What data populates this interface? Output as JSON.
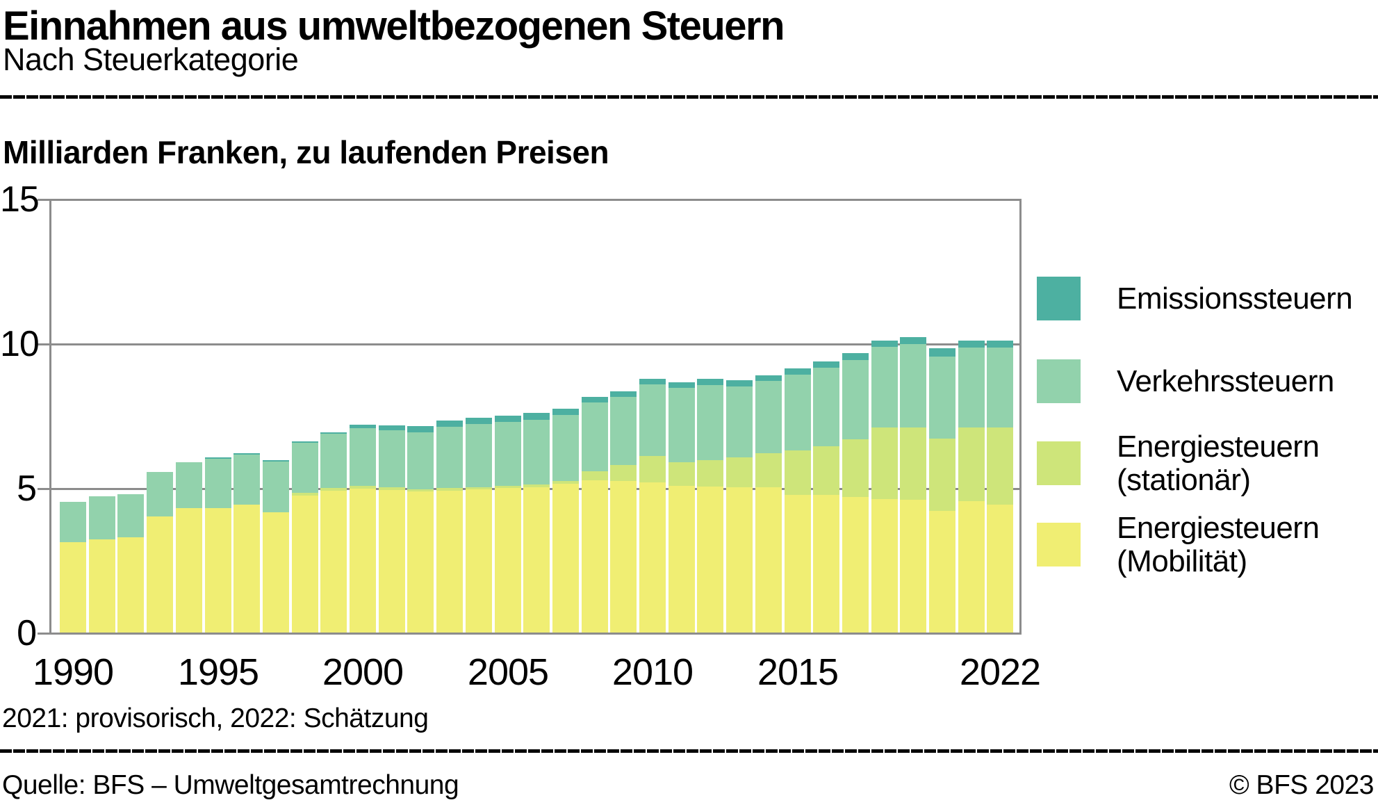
{
  "header": {
    "title": "Einnahmen aus umweltbezogenen Steuern",
    "subtitle": "Nach Steuerkategorie"
  },
  "units_label": "Milliarden Franken, zu laufenden Preisen",
  "footnote": "2021: provisorisch, 2022: Schätzung",
  "source": "Quelle: BFS – Umweltgesamtrechnung",
  "copyright": "© BFS 2023",
  "colors": {
    "axis_gray": "#8C8C8C",
    "emissions": "#4DB0A1",
    "traffic": "#92D2AC",
    "energy_stationary": "#CEE57A",
    "energy_mobility": "#F0EE73",
    "text": "#000000",
    "background": "#FFFFFF"
  },
  "legend": {
    "items": [
      {
        "key": "emissions",
        "lines": [
          "Emissionssteuern"
        ]
      },
      {
        "key": "traffic",
        "lines": [
          "Verkehrssteuern"
        ]
      },
      {
        "key": "energy_stationary",
        "lines": [
          "Energiesteuern",
          "(stationär)"
        ]
      },
      {
        "key": "energy_mobility",
        "lines": [
          "Energiesteuern",
          "(Mobilität)"
        ]
      }
    ]
  },
  "chart_data": {
    "type": "bar",
    "stacked": true,
    "title": "Einnahmen aus umweltbezogenen Steuern",
    "ylabel": "Milliarden Franken, zu laufenden Preisen",
    "ylim": [
      0,
      15
    ],
    "y_ticks": [
      0,
      5,
      10,
      15
    ],
    "x_tick_years": [
      "1990",
      "1995",
      "2000",
      "2005",
      "2010",
      "2015",
      "2022"
    ],
    "grid": true,
    "legend_position": "right",
    "categories": [
      "1990",
      "1991",
      "1992",
      "1993",
      "1994",
      "1995",
      "1996",
      "1997",
      "1998",
      "1999",
      "2000",
      "2001",
      "2002",
      "2003",
      "2004",
      "2005",
      "2006",
      "2007",
      "2008",
      "2009",
      "2010",
      "2011",
      "2012",
      "2013",
      "2014",
      "2015",
      "2016",
      "2017",
      "2018",
      "2019",
      "2020",
      "2021",
      "2022"
    ],
    "series": [
      {
        "name": "Energiesteuern (Mobilität)",
        "color_key": "energy_mobility",
        "values": [
          3.12,
          3.22,
          3.29,
          4.02,
          4.3,
          4.31,
          4.42,
          4.15,
          4.74,
          4.9,
          4.98,
          4.92,
          4.88,
          4.91,
          4.94,
          4.99,
          5.02,
          5.15,
          5.25,
          5.23,
          5.19,
          5.08,
          5.04,
          5.03,
          5.01,
          4.75,
          4.75,
          4.69,
          4.61,
          4.58,
          4.21,
          4.53,
          4.43
        ]
      },
      {
        "name": "Energiesteuern (stationär)",
        "color_key": "energy_stationary",
        "values": [
          0,
          0,
          0,
          0,
          0,
          0,
          0,
          0,
          0.1,
          0.1,
          0.1,
          0.1,
          0.07,
          0.08,
          0.08,
          0.09,
          0.1,
          0.08,
          0.32,
          0.56,
          0.92,
          0.81,
          0.91,
          1.02,
          1.18,
          1.55,
          1.7,
          1.98,
          2.47,
          2.5,
          2.5,
          2.55,
          2.65
        ]
      },
      {
        "name": "Verkehrssteuern",
        "color_key": "traffic",
        "values": [
          1.39,
          1.48,
          1.49,
          1.53,
          1.59,
          1.69,
          1.73,
          1.75,
          1.71,
          1.86,
          1.98,
          1.96,
          1.98,
          2.11,
          2.18,
          2.2,
          2.24,
          2.3,
          2.38,
          2.35,
          2.46,
          2.57,
          2.61,
          2.46,
          2.5,
          2.61,
          2.7,
          2.76,
          2.79,
          2.9,
          2.83,
          2.77,
          2.78
        ]
      },
      {
        "name": "Emissionssteuern",
        "color_key": "emissions",
        "values": [
          0,
          0,
          0,
          0,
          0,
          0.05,
          0.05,
          0.05,
          0.06,
          0.07,
          0.12,
          0.19,
          0.2,
          0.22,
          0.22,
          0.22,
          0.23,
          0.2,
          0.2,
          0.19,
          0.2,
          0.19,
          0.21,
          0.2,
          0.21,
          0.22,
          0.22,
          0.23,
          0.22,
          0.23,
          0.28,
          0.24,
          0.24
        ]
      }
    ]
  }
}
